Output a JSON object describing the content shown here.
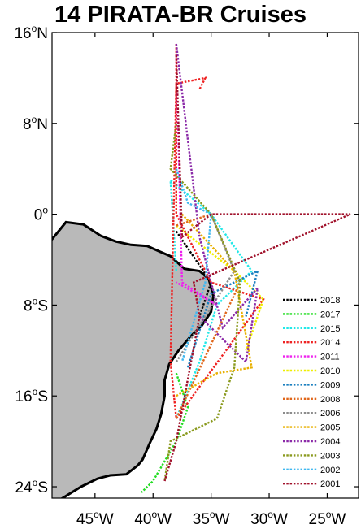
{
  "title": "14 PIRATA-BR Cruises",
  "map": {
    "lon_range": [
      -48.7,
      -22.3
    ],
    "lat_range": [
      -25.0,
      16.0
    ],
    "land_color": "#b9b9b9",
    "coast_color": "#000000"
  },
  "axis": {
    "y_ticks": [
      {
        "value": 16,
        "num": "16",
        "hemi": "N"
      },
      {
        "value": 8,
        "num": "8",
        "hemi": "N"
      },
      {
        "value": 0,
        "num": "0",
        "hemi": ""
      },
      {
        "value": -8,
        "num": "8",
        "hemi": "S"
      },
      {
        "value": -16,
        "num": "16",
        "hemi": "S"
      },
      {
        "value": -24,
        "num": "24",
        "hemi": "S"
      }
    ],
    "x_ticks": [
      {
        "value": -45,
        "num": "45",
        "hemi": "W"
      },
      {
        "value": -40,
        "num": "40",
        "hemi": "W"
      },
      {
        "value": -35,
        "num": "35",
        "hemi": "W"
      },
      {
        "value": -30,
        "num": "30",
        "hemi": "W"
      },
      {
        "value": -25,
        "num": "25",
        "hemi": "W"
      }
    ]
  },
  "legend": [
    {
      "year": "2018",
      "color": "#000000"
    },
    {
      "year": "2017",
      "color": "#22dd22"
    },
    {
      "year": "2015",
      "color": "#22e8e8"
    },
    {
      "year": "2014",
      "color": "#ee2222"
    },
    {
      "year": "2011",
      "color": "#ee22ee"
    },
    {
      "year": "2010",
      "color": "#eeee00"
    },
    {
      "year": "2009",
      "color": "#1a7fbf"
    },
    {
      "year": "2008",
      "color": "#e0661a"
    },
    {
      "year": "2006",
      "color": "#8c8c8c"
    },
    {
      "year": "2005",
      "color": "#e8b000"
    },
    {
      "year": "2004",
      "color": "#8b2aa8"
    },
    {
      "year": "2003",
      "color": "#8a9a1e"
    },
    {
      "year": "2002",
      "color": "#40b8f0"
    },
    {
      "year": "2001",
      "color": "#a0102a"
    }
  ],
  "coastline": [
    [
      -48.7,
      -2.2
    ],
    [
      -47.5,
      -0.7
    ],
    [
      -46.0,
      -0.9
    ],
    [
      -44.5,
      -1.9
    ],
    [
      -43.2,
      -2.4
    ],
    [
      -41.9,
      -2.7
    ],
    [
      -40.5,
      -2.8
    ],
    [
      -39.4,
      -3.3
    ],
    [
      -38.5,
      -3.7
    ],
    [
      -37.3,
      -4.8
    ],
    [
      -36.0,
      -5.0
    ],
    [
      -35.2,
      -5.7
    ],
    [
      -34.8,
      -7.2
    ],
    [
      -35.0,
      -8.6
    ],
    [
      -35.8,
      -9.8
    ],
    [
      -36.8,
      -10.8
    ],
    [
      -37.8,
      -12.0
    ],
    [
      -38.6,
      -13.2
    ],
    [
      -39.0,
      -14.6
    ],
    [
      -39.0,
      -16.0
    ],
    [
      -39.3,
      -17.6
    ],
    [
      -39.7,
      -18.9
    ],
    [
      -40.3,
      -20.2
    ],
    [
      -40.9,
      -21.6
    ],
    [
      -41.3,
      -22.1
    ],
    [
      -42.3,
      -22.9
    ],
    [
      -43.7,
      -23.0
    ],
    [
      -44.8,
      -23.3
    ],
    [
      -46.2,
      -24.0
    ],
    [
      -47.8,
      -25.0
    ],
    [
      -48.7,
      -25.6
    ]
  ],
  "tracks": [
    {
      "year": "2018",
      "pts": [
        [
          -38.0,
          -1.5
        ],
        [
          -35.0,
          -6.0
        ],
        [
          -36.0,
          -9.0
        ]
      ]
    },
    {
      "year": "2017",
      "pts": [
        [
          -38.0,
          -14.0
        ],
        [
          -37.0,
          -17.0
        ],
        [
          -38.0,
          -20.0
        ],
        [
          -40.0,
          -23.5
        ],
        [
          -41.0,
          -24.5
        ]
      ]
    },
    {
      "year": "2015",
      "pts": [
        [
          -38.0,
          -18.0
        ],
        [
          -36.0,
          -13.0
        ],
        [
          -34.5,
          -8.0
        ],
        [
          -31.5,
          -5.0
        ],
        [
          -35.0,
          0.0
        ],
        [
          -38.5,
          3.0
        ],
        [
          -38.0,
          -5.0
        ]
      ]
    },
    {
      "year": "2014",
      "pts": [
        [
          -38.0,
          15.0
        ],
        [
          -38.0,
          11.0
        ],
        [
          -38.0,
          0.0
        ],
        [
          -35.0,
          -6.0
        ],
        [
          -30.5,
          -7.5
        ],
        [
          -38.0,
          -18.0
        ],
        [
          -38.5,
          -13.0
        ],
        [
          -38.0,
          11.5
        ],
        [
          -35.5,
          12.0
        ],
        [
          -36.0,
          11.0
        ]
      ]
    },
    {
      "year": "2011",
      "pts": [
        [
          -38.0,
          14.0
        ],
        [
          -37.5,
          -6.0
        ],
        [
          -34.5,
          -8.0
        ],
        [
          -38.0,
          -6.0
        ]
      ]
    },
    {
      "year": "2010",
      "pts": [
        [
          -38.0,
          -1.0
        ],
        [
          -33.0,
          -5.0
        ],
        [
          -30.5,
          -7.5
        ],
        [
          -32.0,
          -12.0
        ]
      ]
    },
    {
      "year": "2009",
      "pts": [
        [
          -37.0,
          -13.5
        ],
        [
          -35.0,
          -7.0
        ],
        [
          -31.0,
          -5.0
        ],
        [
          -32.0,
          -9.0
        ]
      ]
    },
    {
      "year": "2008",
      "pts": [
        [
          -38.0,
          -1.0
        ],
        [
          -35.0,
          0.0
        ],
        [
          -32.5,
          -6.0
        ],
        [
          -38.0,
          -18.0
        ]
      ]
    },
    {
      "year": "2006",
      "pts": [
        [
          -38.0,
          -13.0
        ],
        [
          -33.0,
          -5.0
        ],
        [
          -35.0,
          0.0
        ]
      ]
    },
    {
      "year": "2005",
      "pts": [
        [
          -38.0,
          -16.0
        ],
        [
          -34.5,
          -14.0
        ],
        [
          -31.5,
          -13.5
        ],
        [
          -33.0,
          -5.0
        ],
        [
          -37.5,
          0.0
        ]
      ]
    },
    {
      "year": "2004",
      "pts": [
        [
          -38.0,
          15.0
        ],
        [
          -36.0,
          -2.0
        ],
        [
          -34.0,
          -10.0
        ],
        [
          -31.0,
          -6.5
        ],
        [
          -32.0,
          -13.0
        ],
        [
          -36.0,
          -9.0
        ]
      ]
    },
    {
      "year": "2003",
      "pts": [
        [
          -38.0,
          8.0
        ],
        [
          -38.5,
          4.0
        ],
        [
          -35.0,
          0.0
        ],
        [
          -32.5,
          -6.0
        ],
        [
          -33.0,
          -13.5
        ],
        [
          -34.5,
          -18.0
        ],
        [
          -38.5,
          -20.0
        ],
        [
          -39.0,
          -23.5
        ]
      ]
    },
    {
      "year": "2002",
      "pts": [
        [
          -38.0,
          4.0
        ],
        [
          -37.0,
          1.0
        ],
        [
          -35.0,
          0.0
        ],
        [
          -35.5,
          -6.0
        ],
        [
          -37.5,
          -13.0
        ]
      ]
    },
    {
      "year": "2001",
      "pts": [
        [
          -38.0,
          14.0
        ],
        [
          -37.5,
          -2.0
        ],
        [
          -35.0,
          0.0
        ],
        [
          -23.0,
          0.0
        ],
        [
          -36.5,
          -6.0
        ],
        [
          -36.0,
          -9.0
        ],
        [
          -38.0,
          -20.0
        ],
        [
          -39.0,
          -23.5
        ]
      ]
    }
  ]
}
